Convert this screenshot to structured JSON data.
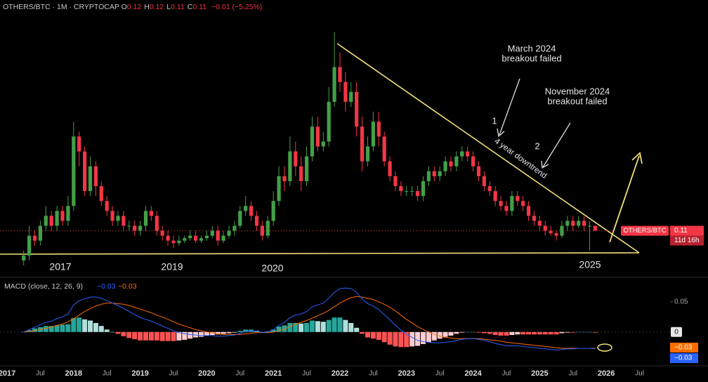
{
  "header": {
    "symbol": "OTHERS/BTC · 1M · CRYPTOCAP",
    "ohlc": [
      {
        "key": "O",
        "value": 0.12
      },
      {
        "key": "H",
        "value": 0.12
      },
      {
        "key": "L",
        "value": 0.11
      },
      {
        "key": "C",
        "value": 0.11
      }
    ],
    "change": "−0.01 (−5.25%)"
  },
  "chart_data": [
    {
      "type": "candlestick",
      "up_color": "#43a047",
      "down_color": "#f23645",
      "xlim": [
        0,
        119.5
      ],
      "ylim": [
        0.04,
        0.54
      ],
      "log_scale": false,
      "x": [
        3,
        4,
        5,
        6,
        7,
        8,
        9,
        10,
        11,
        12,
        13,
        14,
        15,
        16,
        17,
        18,
        19,
        20,
        21,
        22,
        23,
        24,
        25,
        26,
        27,
        28,
        29,
        30,
        31,
        32,
        33,
        34,
        35,
        36,
        37,
        38,
        39,
        40,
        41,
        42,
        43,
        44,
        45,
        46,
        47,
        48,
        49,
        50,
        51,
        52,
        53,
        54,
        55,
        56,
        57,
        58,
        59,
        60,
        61,
        62,
        63,
        64,
        65,
        66,
        67,
        68,
        69,
        70,
        71,
        72,
        73,
        74,
        75,
        76,
        77,
        78,
        79,
        80,
        81,
        82,
        83,
        84,
        85,
        86,
        87,
        88,
        89,
        90,
        91,
        92,
        93,
        94,
        95,
        96,
        97,
        98,
        99,
        100,
        101,
        102,
        103,
        104,
        105,
        106
      ],
      "open": [
        0.05,
        0.06,
        0.1,
        0.09,
        0.12,
        0.14,
        0.12,
        0.15,
        0.13,
        0.16,
        0.3,
        0.27,
        0.19,
        0.24,
        0.2,
        0.17,
        0.15,
        0.13,
        0.14,
        0.12,
        0.12,
        0.11,
        0.12,
        0.15,
        0.14,
        0.11,
        0.1,
        0.09,
        0.085,
        0.09,
        0.095,
        0.1,
        0.09,
        0.095,
        0.1,
        0.11,
        0.09,
        0.1,
        0.11,
        0.12,
        0.15,
        0.16,
        0.14,
        0.12,
        0.1,
        0.13,
        0.17,
        0.22,
        0.21,
        0.27,
        0.24,
        0.21,
        0.26,
        0.32,
        0.28,
        0.29,
        0.37,
        0.44,
        0.41,
        0.37,
        0.39,
        0.32,
        0.25,
        0.28,
        0.33,
        0.3,
        0.25,
        0.22,
        0.2,
        0.19,
        0.19,
        0.19,
        0.18,
        0.21,
        0.23,
        0.22,
        0.23,
        0.25,
        0.24,
        0.26,
        0.27,
        0.26,
        0.24,
        0.22,
        0.2,
        0.19,
        0.17,
        0.16,
        0.15,
        0.18,
        0.17,
        0.16,
        0.14,
        0.13,
        0.12,
        0.11,
        0.105,
        0.1,
        0.12,
        0.13,
        0.12,
        0.13,
        0.12,
        0.12
      ],
      "high": [
        0.07,
        0.12,
        0.11,
        0.13,
        0.16,
        0.15,
        0.16,
        0.16,
        0.18,
        0.33,
        0.31,
        0.28,
        0.26,
        0.25,
        0.21,
        0.18,
        0.16,
        0.15,
        0.15,
        0.13,
        0.13,
        0.13,
        0.16,
        0.16,
        0.15,
        0.12,
        0.11,
        0.1,
        0.1,
        0.1,
        0.11,
        0.11,
        0.1,
        0.11,
        0.12,
        0.12,
        0.11,
        0.12,
        0.13,
        0.16,
        0.18,
        0.17,
        0.15,
        0.13,
        0.14,
        0.19,
        0.24,
        0.24,
        0.3,
        0.29,
        0.26,
        0.28,
        0.34,
        0.34,
        0.31,
        0.4,
        0.51,
        0.47,
        0.43,
        0.41,
        0.41,
        0.34,
        0.3,
        0.35,
        0.35,
        0.31,
        0.26,
        0.23,
        0.21,
        0.2,
        0.2,
        0.2,
        0.22,
        0.24,
        0.24,
        0.24,
        0.26,
        0.26,
        0.27,
        0.28,
        0.28,
        0.27,
        0.25,
        0.23,
        0.21,
        0.2,
        0.18,
        0.17,
        0.19,
        0.19,
        0.18,
        0.17,
        0.15,
        0.14,
        0.13,
        0.12,
        0.11,
        0.13,
        0.14,
        0.14,
        0.14,
        0.14,
        0.13,
        0.12
      ],
      "low": [
        0.04,
        0.05,
        0.08,
        0.08,
        0.11,
        0.11,
        0.11,
        0.12,
        0.12,
        0.15,
        0.24,
        0.18,
        0.18,
        0.18,
        0.16,
        0.14,
        0.12,
        0.12,
        0.11,
        0.11,
        0.1,
        0.1,
        0.11,
        0.13,
        0.1,
        0.09,
        0.08,
        0.075,
        0.08,
        0.085,
        0.09,
        0.085,
        0.085,
        0.09,
        0.095,
        0.08,
        0.085,
        0.095,
        0.1,
        0.115,
        0.14,
        0.13,
        0.11,
        0.09,
        0.095,
        0.12,
        0.16,
        0.19,
        0.2,
        0.22,
        0.19,
        0.2,
        0.25,
        0.27,
        0.27,
        0.28,
        0.36,
        0.39,
        0.35,
        0.36,
        0.3,
        0.23,
        0.24,
        0.27,
        0.28,
        0.24,
        0.21,
        0.19,
        0.18,
        0.18,
        0.18,
        0.17,
        0.17,
        0.2,
        0.21,
        0.21,
        0.22,
        0.23,
        0.23,
        0.25,
        0.25,
        0.23,
        0.21,
        0.19,
        0.18,
        0.16,
        0.15,
        0.14,
        0.14,
        0.16,
        0.15,
        0.13,
        0.12,
        0.11,
        0.1,
        0.1,
        0.09,
        0.095,
        0.11,
        0.11,
        0.115,
        0.11,
        0.07,
        0.11
      ],
      "close": [
        0.06,
        0.1,
        0.09,
        0.12,
        0.14,
        0.12,
        0.15,
        0.13,
        0.16,
        0.3,
        0.27,
        0.19,
        0.24,
        0.2,
        0.17,
        0.15,
        0.13,
        0.14,
        0.12,
        0.12,
        0.11,
        0.12,
        0.15,
        0.14,
        0.11,
        0.1,
        0.09,
        0.085,
        0.09,
        0.095,
        0.1,
        0.09,
        0.095,
        0.1,
        0.11,
        0.09,
        0.1,
        0.11,
        0.12,
        0.15,
        0.16,
        0.14,
        0.12,
        0.1,
        0.13,
        0.17,
        0.22,
        0.21,
        0.27,
        0.24,
        0.21,
        0.26,
        0.32,
        0.28,
        0.29,
        0.37,
        0.44,
        0.41,
        0.37,
        0.39,
        0.32,
        0.25,
        0.28,
        0.33,
        0.3,
        0.25,
        0.22,
        0.2,
        0.19,
        0.19,
        0.19,
        0.18,
        0.21,
        0.23,
        0.22,
        0.23,
        0.25,
        0.24,
        0.26,
        0.27,
        0.26,
        0.24,
        0.22,
        0.2,
        0.19,
        0.17,
        0.16,
        0.15,
        0.18,
        0.17,
        0.16,
        0.14,
        0.13,
        0.12,
        0.11,
        0.105,
        0.1,
        0.12,
        0.13,
        0.12,
        0.13,
        0.12,
        0.12,
        0.11
      ],
      "annotations": [
        "March 2024",
        "breakout failed",
        "November 2024",
        "breakout failed",
        "1",
        "2",
        "4 year downtrend"
      ],
      "period_labels": [
        "2017",
        "2019",
        "2020",
        "2025"
      ],
      "last_price": {
        "label": "OTHERS/BTC",
        "value": 0.11,
        "countdown": "11d 16h"
      }
    },
    {
      "type": "macd",
      "title": "MACD (close, 12, 26, 9)",
      "xlim": [
        0,
        119.5
      ],
      "ylim": [
        -0.055,
        0.079
      ],
      "yticks": [
        0.05,
        0
      ],
      "xticks": [
        {
          "value": 0,
          "label": "2017"
        },
        {
          "value": 6,
          "label": "Jul"
        },
        {
          "value": 12,
          "label": "2018"
        },
        {
          "value": 18,
          "label": "Jul"
        },
        {
          "value": 24,
          "label": "2019"
        },
        {
          "value": 30,
          "label": "Jul"
        },
        {
          "value": 36,
          "label": "2020"
        },
        {
          "value": 42,
          "label": "Jul"
        },
        {
          "value": 48,
          "label": "2021"
        },
        {
          "value": 54,
          "label": "Jul"
        },
        {
          "value": 60,
          "label": "2022"
        },
        {
          "value": 66,
          "label": "Jul"
        },
        {
          "value": 72,
          "label": "2023"
        },
        {
          "value": 78,
          "label": "Jul"
        },
        {
          "value": 84,
          "label": "2024"
        },
        {
          "value": 90,
          "label": "Jul"
        },
        {
          "value": 96,
          "label": "2025"
        },
        {
          "value": 102,
          "label": "Jul"
        },
        {
          "value": 108,
          "label": "2026"
        },
        {
          "value": 114,
          "label": "Jul"
        }
      ],
      "x": [
        3,
        4,
        5,
        6,
        7,
        8,
        9,
        10,
        11,
        12,
        13,
        14,
        15,
        16,
        17,
        18,
        19,
        20,
        21,
        22,
        23,
        24,
        25,
        26,
        27,
        28,
        29,
        30,
        31,
        32,
        33,
        34,
        35,
        36,
        37,
        38,
        39,
        40,
        41,
        42,
        43,
        44,
        45,
        46,
        47,
        48,
        49,
        50,
        51,
        52,
        53,
        54,
        55,
        56,
        57,
        58,
        59,
        60,
        61,
        62,
        63,
        64,
        65,
        66,
        67,
        68,
        69,
        70,
        71,
        72,
        73,
        74,
        75,
        76,
        77,
        78,
        79,
        80,
        81,
        82,
        83,
        84,
        85,
        86,
        87,
        88,
        89,
        90,
        91,
        92,
        93,
        94,
        95,
        96,
        97,
        98,
        99,
        100,
        101,
        102,
        103,
        104,
        105,
        106
      ],
      "macd": {
        "color": "#2962ff",
        "value_label": "−0.03",
        "values": [
          0.0,
          0.004,
          0.008,
          0.012,
          0.016,
          0.018,
          0.022,
          0.025,
          0.03,
          0.045,
          0.052,
          0.055,
          0.058,
          0.058,
          0.056,
          0.052,
          0.048,
          0.044,
          0.039,
          0.034,
          0.029,
          0.024,
          0.021,
          0.018,
          0.014,
          0.01,
          0.006,
          0.002,
          -0.001,
          -0.003,
          -0.004,
          -0.005,
          -0.006,
          -0.006,
          -0.006,
          -0.007,
          -0.007,
          -0.006,
          -0.005,
          -0.002,
          0.001,
          0.002,
          0.001,
          -0.001,
          0.0,
          0.004,
          0.011,
          0.016,
          0.024,
          0.028,
          0.03,
          0.034,
          0.042,
          0.045,
          0.048,
          0.056,
          0.066,
          0.072,
          0.073,
          0.072,
          0.066,
          0.055,
          0.047,
          0.043,
          0.037,
          0.029,
          0.02,
          0.011,
          0.003,
          -0.004,
          -0.009,
          -0.014,
          -0.016,
          -0.017,
          -0.018,
          -0.018,
          -0.017,
          -0.016,
          -0.014,
          -0.012,
          -0.011,
          -0.011,
          -0.012,
          -0.014,
          -0.016,
          -0.019,
          -0.021,
          -0.023,
          -0.023,
          -0.023,
          -0.024,
          -0.025,
          -0.026,
          -0.027,
          -0.028,
          -0.029,
          -0.03,
          -0.029,
          -0.028,
          -0.028,
          -0.027,
          -0.027,
          -0.027,
          -0.028
        ]
      },
      "signal": {
        "color": "#ff6d00",
        "value_label": "−0.03",
        "values": [
          0.0,
          0.001,
          0.002,
          0.004,
          0.006,
          0.008,
          0.011,
          0.013,
          0.017,
          0.022,
          0.028,
          0.034,
          0.039,
          0.043,
          0.046,
          0.048,
          0.048,
          0.047,
          0.046,
          0.044,
          0.041,
          0.038,
          0.035,
          0.032,
          0.028,
          0.025,
          0.021,
          0.017,
          0.013,
          0.01,
          0.007,
          0.004,
          0.002,
          0.0,
          -0.001,
          -0.003,
          -0.004,
          -0.004,
          -0.004,
          -0.004,
          -0.003,
          -0.002,
          -0.001,
          -0.001,
          -0.001,
          0.0,
          0.002,
          0.005,
          0.009,
          0.013,
          0.016,
          0.019,
          0.023,
          0.027,
          0.031,
          0.036,
          0.042,
          0.048,
          0.053,
          0.057,
          0.059,
          0.058,
          0.056,
          0.054,
          0.05,
          0.046,
          0.041,
          0.035,
          0.028,
          0.021,
          0.015,
          0.009,
          0.004,
          0.0,
          -0.004,
          -0.007,
          -0.009,
          -0.01,
          -0.011,
          -0.011,
          -0.011,
          -0.011,
          -0.011,
          -0.012,
          -0.013,
          -0.014,
          -0.015,
          -0.017,
          -0.018,
          -0.019,
          -0.02,
          -0.021,
          -0.022,
          -0.023,
          -0.024,
          -0.025,
          -0.026,
          -0.027,
          -0.027,
          -0.027,
          -0.027,
          -0.027,
          -0.027,
          -0.027
        ]
      },
      "histogram": {
        "colors": [
          "#26a69a",
          "#b2dfdb",
          "#ff5252",
          "#ffcdd2"
        ],
        "values": [
          0.0,
          0.003,
          0.006,
          0.008,
          0.01,
          0.01,
          0.011,
          0.012,
          0.013,
          0.023,
          0.024,
          0.021,
          0.019,
          0.015,
          0.01,
          0.004,
          0.0,
          -0.003,
          -0.007,
          -0.01,
          -0.012,
          -0.014,
          -0.014,
          -0.014,
          -0.014,
          -0.015,
          -0.015,
          -0.015,
          -0.014,
          -0.013,
          -0.011,
          -0.009,
          -0.008,
          -0.006,
          -0.005,
          -0.004,
          -0.003,
          -0.002,
          -0.001,
          0.002,
          0.004,
          0.004,
          0.002,
          0.0,
          0.001,
          0.004,
          0.009,
          0.011,
          0.015,
          0.015,
          0.014,
          0.015,
          0.019,
          0.018,
          0.017,
          0.02,
          0.024,
          0.024,
          0.02,
          0.015,
          0.007,
          -0.003,
          -0.009,
          -0.011,
          -0.013,
          -0.017,
          -0.021,
          -0.024,
          -0.025,
          -0.025,
          -0.024,
          -0.023,
          -0.02,
          -0.017,
          -0.014,
          -0.011,
          -0.008,
          -0.006,
          -0.003,
          -0.001,
          0.0,
          0.0,
          -0.001,
          -0.002,
          -0.003,
          -0.005,
          -0.006,
          -0.006,
          -0.005,
          -0.004,
          -0.004,
          -0.004,
          -0.004,
          -0.004,
          -0.004,
          -0.004,
          -0.004,
          -0.002,
          -0.001,
          -0.001,
          0.0,
          0.0,
          0.0,
          -0.001
        ]
      }
    }
  ]
}
